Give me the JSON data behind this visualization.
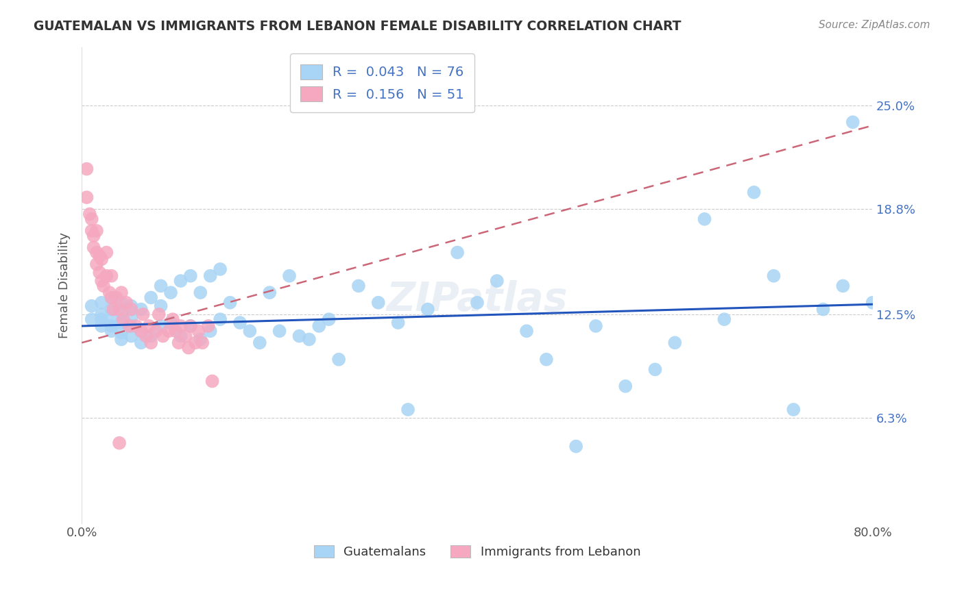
{
  "title": "GUATEMALAN VS IMMIGRANTS FROM LEBANON FEMALE DISABILITY CORRELATION CHART",
  "source": "Source: ZipAtlas.com",
  "ylabel": "Female Disability",
  "xmin": 0.0,
  "xmax": 0.8,
  "ymin": 0.0,
  "ymax": 0.285,
  "yticks": [
    0.063,
    0.125,
    0.188,
    0.25
  ],
  "ytick_labels": [
    "6.3%",
    "12.5%",
    "18.8%",
    "25.0%"
  ],
  "xticks": [
    0.0,
    0.1,
    0.2,
    0.3,
    0.4,
    0.5,
    0.6,
    0.7,
    0.8
  ],
  "xtick_labels": [
    "0.0%",
    "",
    "",
    "",
    "",
    "",
    "",
    "",
    "80.0%"
  ],
  "color_blue": "#A8D4F5",
  "color_pink": "#F5A8C0",
  "trend_blue": "#2255BB",
  "trend_pink": "#CC6677",
  "R_blue": 0.043,
  "N_blue": 76,
  "R_pink": 0.156,
  "N_pink": 51,
  "blue_x": [
    0.01,
    0.01,
    0.02,
    0.02,
    0.02,
    0.02,
    0.03,
    0.03,
    0.03,
    0.03,
    0.03,
    0.04,
    0.04,
    0.04,
    0.04,
    0.04,
    0.05,
    0.05,
    0.05,
    0.05,
    0.06,
    0.06,
    0.06,
    0.07,
    0.07,
    0.08,
    0.08,
    0.08,
    0.09,
    0.09,
    0.1,
    0.1,
    0.11,
    0.11,
    0.12,
    0.12,
    0.13,
    0.13,
    0.14,
    0.14,
    0.15,
    0.16,
    0.17,
    0.18,
    0.19,
    0.2,
    0.21,
    0.22,
    0.23,
    0.24,
    0.25,
    0.26,
    0.28,
    0.3,
    0.32,
    0.33,
    0.35,
    0.38,
    0.4,
    0.42,
    0.45,
    0.47,
    0.5,
    0.52,
    0.55,
    0.58,
    0.6,
    0.63,
    0.65,
    0.68,
    0.7,
    0.72,
    0.75,
    0.77,
    0.78,
    0.8
  ],
  "blue_y": [
    0.122,
    0.13,
    0.118,
    0.122,
    0.125,
    0.132,
    0.115,
    0.118,
    0.122,
    0.128,
    0.135,
    0.11,
    0.114,
    0.12,
    0.126,
    0.132,
    0.112,
    0.118,
    0.123,
    0.13,
    0.108,
    0.115,
    0.128,
    0.112,
    0.135,
    0.118,
    0.13,
    0.142,
    0.12,
    0.138,
    0.112,
    0.145,
    0.118,
    0.148,
    0.11,
    0.138,
    0.115,
    0.148,
    0.122,
    0.152,
    0.132,
    0.12,
    0.115,
    0.108,
    0.138,
    0.115,
    0.148,
    0.112,
    0.11,
    0.118,
    0.122,
    0.098,
    0.142,
    0.132,
    0.12,
    0.068,
    0.128,
    0.162,
    0.132,
    0.145,
    0.115,
    0.098,
    0.046,
    0.118,
    0.082,
    0.092,
    0.108,
    0.182,
    0.122,
    0.198,
    0.148,
    0.068,
    0.128,
    0.142,
    0.24,
    0.132
  ],
  "pink_x": [
    0.005,
    0.005,
    0.008,
    0.01,
    0.01,
    0.012,
    0.012,
    0.015,
    0.015,
    0.015,
    0.018,
    0.018,
    0.02,
    0.02,
    0.022,
    0.025,
    0.025,
    0.028,
    0.03,
    0.03,
    0.032,
    0.035,
    0.038,
    0.04,
    0.042,
    0.045,
    0.048,
    0.05,
    0.055,
    0.06,
    0.062,
    0.065,
    0.068,
    0.07,
    0.075,
    0.078,
    0.082,
    0.088,
    0.092,
    0.095,
    0.098,
    0.1,
    0.105,
    0.108,
    0.11,
    0.115,
    0.118,
    0.122,
    0.128,
    0.132,
    0.038
  ],
  "pink_y": [
    0.195,
    0.212,
    0.185,
    0.175,
    0.182,
    0.165,
    0.172,
    0.155,
    0.162,
    0.175,
    0.15,
    0.16,
    0.145,
    0.158,
    0.142,
    0.148,
    0.162,
    0.138,
    0.135,
    0.148,
    0.128,
    0.135,
    0.128,
    0.138,
    0.122,
    0.132,
    0.118,
    0.128,
    0.118,
    0.115,
    0.125,
    0.112,
    0.118,
    0.108,
    0.115,
    0.125,
    0.112,
    0.115,
    0.122,
    0.115,
    0.108,
    0.118,
    0.112,
    0.105,
    0.118,
    0.108,
    0.115,
    0.108,
    0.118,
    0.085,
    0.048
  ],
  "blue_trend_start_x": 0.0,
  "blue_trend_end_x": 0.8,
  "blue_trend_start_y": 0.118,
  "blue_trend_end_y": 0.131,
  "pink_trend_start_x": 0.0,
  "pink_trend_end_x": 0.8,
  "pink_trend_start_y": 0.108,
  "pink_trend_end_y": 0.238
}
